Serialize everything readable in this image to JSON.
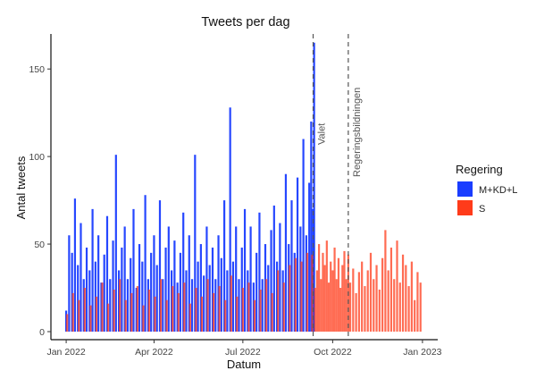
{
  "chart_data": {
    "type": "bar",
    "title": "Tweets per dag",
    "xlabel": "Datum",
    "ylabel": "Antal tweets",
    "x_range": [
      "2021-12-31",
      "2023-01-02"
    ],
    "ylim": [
      0,
      170
    ],
    "y_ticks": [
      0,
      50,
      100,
      150
    ],
    "x_ticks": [
      {
        "date": "2022-01-01",
        "label": "Jan 2022"
      },
      {
        "date": "2022-04-01",
        "label": "Apr 2022"
      },
      {
        "date": "2022-07-01",
        "label": "Jul 2022"
      },
      {
        "date": "2022-10-01",
        "label": "Oct 2022"
      },
      {
        "date": "2023-01-01",
        "label": "Jan 2023"
      }
    ],
    "grid": false,
    "legend_position": "right",
    "legend_title": "Regering",
    "series_colors": {
      "M+KD+L": "#1a3dff",
      "S": "#ff3b1a"
    },
    "series": [
      {
        "name": "M+KD+L",
        "color": "#1a3dff",
        "points": [
          [
            "2022-01-01",
            12
          ],
          [
            "2022-01-04",
            55
          ],
          [
            "2022-01-07",
            45
          ],
          [
            "2022-01-10",
            76
          ],
          [
            "2022-01-13",
            38
          ],
          [
            "2022-01-16",
            62
          ],
          [
            "2022-01-19",
            30
          ],
          [
            "2022-01-22",
            48
          ],
          [
            "2022-01-25",
            35
          ],
          [
            "2022-01-28",
            70
          ],
          [
            "2022-01-31",
            40
          ],
          [
            "2022-02-03",
            55
          ],
          [
            "2022-02-06",
            28
          ],
          [
            "2022-02-09",
            44
          ],
          [
            "2022-02-12",
            66
          ],
          [
            "2022-02-15",
            30
          ],
          [
            "2022-02-18",
            52
          ],
          [
            "2022-02-21",
            101
          ],
          [
            "2022-02-24",
            35
          ],
          [
            "2022-02-27",
            48
          ],
          [
            "2022-03-02",
            60
          ],
          [
            "2022-03-05",
            30
          ],
          [
            "2022-03-08",
            42
          ],
          [
            "2022-03-11",
            70
          ],
          [
            "2022-03-14",
            25
          ],
          [
            "2022-03-17",
            50
          ],
          [
            "2022-03-20",
            40
          ],
          [
            "2022-03-23",
            78
          ],
          [
            "2022-03-26",
            30
          ],
          [
            "2022-03-29",
            45
          ],
          [
            "2022-04-01",
            55
          ],
          [
            "2022-04-04",
            38
          ],
          [
            "2022-04-07",
            75
          ],
          [
            "2022-04-10",
            30
          ],
          [
            "2022-04-13",
            48
          ],
          [
            "2022-04-16",
            60
          ],
          [
            "2022-04-19",
            35
          ],
          [
            "2022-04-22",
            52
          ],
          [
            "2022-04-25",
            28
          ],
          [
            "2022-04-28",
            45
          ],
          [
            "2022-05-01",
            68
          ],
          [
            "2022-05-04",
            35
          ],
          [
            "2022-05-07",
            55
          ],
          [
            "2022-05-10",
            30
          ],
          [
            "2022-05-13",
            101
          ],
          [
            "2022-05-16",
            40
          ],
          [
            "2022-05-19",
            50
          ],
          [
            "2022-05-22",
            32
          ],
          [
            "2022-05-25",
            60
          ],
          [
            "2022-05-28",
            38
          ],
          [
            "2022-05-31",
            48
          ],
          [
            "2022-06-03",
            30
          ],
          [
            "2022-06-06",
            55
          ],
          [
            "2022-06-09",
            42
          ],
          [
            "2022-06-12",
            75
          ],
          [
            "2022-06-15",
            35
          ],
          [
            "2022-06-18",
            128
          ],
          [
            "2022-06-21",
            40
          ],
          [
            "2022-06-24",
            60
          ],
          [
            "2022-06-27",
            30
          ],
          [
            "2022-06-30",
            48
          ],
          [
            "2022-07-03",
            70
          ],
          [
            "2022-07-06",
            35
          ],
          [
            "2022-07-09",
            60
          ],
          [
            "2022-07-12",
            28
          ],
          [
            "2022-07-15",
            45
          ],
          [
            "2022-07-18",
            68
          ],
          [
            "2022-07-21",
            30
          ],
          [
            "2022-07-24",
            50
          ],
          [
            "2022-07-27",
            38
          ],
          [
            "2022-07-30",
            58
          ],
          [
            "2022-08-02",
            72
          ],
          [
            "2022-08-05",
            40
          ],
          [
            "2022-08-08",
            62
          ],
          [
            "2022-08-11",
            35
          ],
          [
            "2022-08-14",
            90
          ],
          [
            "2022-08-17",
            50
          ],
          [
            "2022-08-20",
            75
          ],
          [
            "2022-08-23",
            45
          ],
          [
            "2022-08-26",
            88
          ],
          [
            "2022-08-29",
            60
          ],
          [
            "2022-09-01",
            110
          ],
          [
            "2022-09-04",
            55
          ],
          [
            "2022-09-07",
            85
          ],
          [
            "2022-09-09",
            120
          ],
          [
            "2022-09-11",
            70
          ],
          [
            "2022-09-12",
            165
          ]
        ]
      },
      {
        "name": "S",
        "color": "#ff3b1a",
        "points": [
          [
            "2022-01-02",
            10
          ],
          [
            "2022-01-08",
            22
          ],
          [
            "2022-01-14",
            18
          ],
          [
            "2022-01-20",
            25
          ],
          [
            "2022-01-26",
            15
          ],
          [
            "2022-02-01",
            20
          ],
          [
            "2022-02-07",
            28
          ],
          [
            "2022-02-13",
            16
          ],
          [
            "2022-02-19",
            24
          ],
          [
            "2022-02-25",
            30
          ],
          [
            "2022-03-03",
            18
          ],
          [
            "2022-03-09",
            22
          ],
          [
            "2022-03-15",
            26
          ],
          [
            "2022-03-21",
            15
          ],
          [
            "2022-03-27",
            24
          ],
          [
            "2022-04-02",
            20
          ],
          [
            "2022-04-08",
            30
          ],
          [
            "2022-04-14",
            18
          ],
          [
            "2022-04-20",
            26
          ],
          [
            "2022-04-26",
            22
          ],
          [
            "2022-05-02",
            28
          ],
          [
            "2022-05-08",
            16
          ],
          [
            "2022-05-14",
            25
          ],
          [
            "2022-05-20",
            20
          ],
          [
            "2022-05-26",
            30
          ],
          [
            "2022-06-01",
            22
          ],
          [
            "2022-06-07",
            26
          ],
          [
            "2022-06-13",
            18
          ],
          [
            "2022-06-19",
            32
          ],
          [
            "2022-06-25",
            20
          ],
          [
            "2022-07-01",
            25
          ],
          [
            "2022-07-07",
            28
          ],
          [
            "2022-07-13",
            18
          ],
          [
            "2022-07-19",
            24
          ],
          [
            "2022-07-25",
            30
          ],
          [
            "2022-07-31",
            22
          ],
          [
            "2022-08-06",
            35
          ],
          [
            "2022-08-12",
            28
          ],
          [
            "2022-08-18",
            38
          ],
          [
            "2022-08-24",
            42
          ],
          [
            "2022-08-30",
            40
          ],
          [
            "2022-09-05",
            45
          ],
          [
            "2022-09-10",
            44
          ],
          [
            "2022-09-13",
            25
          ],
          [
            "2022-09-15",
            35
          ],
          [
            "2022-09-17",
            50
          ],
          [
            "2022-09-19",
            30
          ],
          [
            "2022-09-21",
            45
          ],
          [
            "2022-09-23",
            38
          ],
          [
            "2022-09-25",
            52
          ],
          [
            "2022-09-27",
            28
          ],
          [
            "2022-09-29",
            40
          ],
          [
            "2022-10-01",
            35
          ],
          [
            "2022-10-03",
            48
          ],
          [
            "2022-10-05",
            30
          ],
          [
            "2022-10-07",
            42
          ],
          [
            "2022-10-09",
            25
          ],
          [
            "2022-10-11",
            38
          ],
          [
            "2022-10-13",
            46
          ],
          [
            "2022-10-15",
            30
          ],
          [
            "2022-10-17",
            44
          ],
          [
            "2022-10-19",
            28
          ],
          [
            "2022-10-22",
            36
          ],
          [
            "2022-10-25",
            22
          ],
          [
            "2022-10-28",
            34
          ],
          [
            "2022-10-31",
            40
          ],
          [
            "2022-11-03",
            26
          ],
          [
            "2022-11-06",
            35
          ],
          [
            "2022-11-09",
            45
          ],
          [
            "2022-11-12",
            30
          ],
          [
            "2022-11-15",
            38
          ],
          [
            "2022-11-18",
            24
          ],
          [
            "2022-11-21",
            42
          ],
          [
            "2022-11-24",
            58
          ],
          [
            "2022-11-27",
            35
          ],
          [
            "2022-11-30",
            48
          ],
          [
            "2022-12-03",
            30
          ],
          [
            "2022-12-06",
            52
          ],
          [
            "2022-12-09",
            28
          ],
          [
            "2022-12-12",
            44
          ],
          [
            "2022-12-15",
            38
          ],
          [
            "2022-12-18",
            26
          ],
          [
            "2022-12-21",
            40
          ],
          [
            "2022-12-24",
            18
          ],
          [
            "2022-12-27",
            34
          ],
          [
            "2022-12-30",
            28
          ]
        ]
      }
    ],
    "annotations": [
      {
        "label": "Valet",
        "date": "2022-09-11"
      },
      {
        "label": "Regeringsbildningen",
        "date": "2022-10-17"
      }
    ]
  }
}
